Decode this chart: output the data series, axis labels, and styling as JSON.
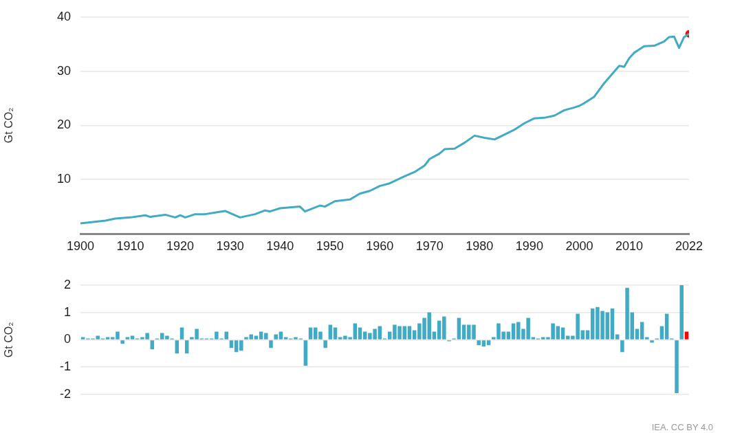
{
  "chart_data": [
    {
      "type": "line",
      "ylabel": "Gt CO₂",
      "xlim": [
        1900,
        2022
      ],
      "xticks": [
        1900,
        1910,
        1920,
        1930,
        1940,
        1950,
        1960,
        1970,
        1980,
        1990,
        2000,
        2010,
        2022
      ],
      "ylim": [
        0,
        40
      ],
      "yticks": [
        10,
        20,
        30,
        40
      ],
      "grid": "y",
      "legend": false,
      "series": [
        {
          "color": "#41aac4",
          "marker": "none",
          "x": [
            1900,
            1905,
            1907,
            1910,
            1913,
            1914,
            1917,
            1919,
            1920,
            1921,
            1923,
            1925,
            1927,
            1929,
            1932,
            1935,
            1937,
            1938,
            1940,
            1944,
            1945,
            1948,
            1949,
            1951,
            1954,
            1956,
            1958,
            1960,
            1962,
            1965,
            1967,
            1969,
            1970,
            1972,
            1973,
            1975,
            1977,
            1979,
            1981,
            1983,
            1985,
            1987,
            1989,
            1991,
            1993,
            1995,
            1997,
            1999,
            2000,
            2001,
            2003,
            2005,
            2008,
            2009,
            2010,
            2011,
            2013,
            2015,
            2017,
            2018,
            2019,
            2020,
            2021,
            2022
          ],
          "values": [
            1.9,
            2.4,
            2.8,
            3.0,
            3.4,
            3.1,
            3.5,
            3.0,
            3.4,
            3.0,
            3.6,
            3.6,
            3.9,
            4.2,
            3.0,
            3.6,
            4.3,
            4.1,
            4.7,
            5.0,
            4.1,
            5.2,
            5.0,
            6.0,
            6.3,
            7.4,
            7.9,
            8.8,
            9.3,
            10.6,
            11.4,
            12.6,
            13.8,
            14.8,
            15.6,
            15.7,
            16.8,
            18.1,
            17.7,
            17.4,
            18.3,
            19.2,
            20.4,
            21.3,
            21.4,
            21.8,
            22.8,
            23.3,
            23.6,
            24.1,
            25.3,
            27.8,
            31.0,
            30.8,
            32.4,
            33.4,
            34.6,
            34.7,
            35.5,
            36.3,
            36.4,
            34.3,
            36.3,
            36.9
          ]
        },
        {
          "type": "scatter",
          "color": "#ff0000",
          "marker": "circle",
          "x": [
            2022
          ],
          "values": [
            36.9
          ]
        }
      ]
    },
    {
      "type": "bar",
      "ylabel": "Gt CO₂",
      "ylim": [
        -2,
        2
      ],
      "yticks": [
        -2,
        -1,
        0,
        1,
        2
      ],
      "grid": "y",
      "legend": false,
      "tick_labels": "y",
      "categories": [
        null,
        null,
        null,
        null,
        null,
        null,
        null,
        null,
        null,
        null,
        null,
        null,
        null,
        null,
        null,
        null,
        null,
        null,
        null,
        null,
        null,
        null,
        null,
        null,
        null,
        null,
        null,
        null,
        null,
        null,
        null,
        null,
        null,
        null,
        null,
        null,
        null,
        null,
        null,
        null,
        null,
        null,
        null,
        null,
        null,
        null,
        null,
        null,
        null,
        null,
        null,
        null,
        null,
        null,
        null,
        null,
        null,
        null,
        null,
        null,
        null,
        null,
        null,
        null,
        null,
        null,
        null,
        null,
        null,
        null,
        null,
        null,
        null,
        null,
        null,
        null,
        null,
        null,
        null,
        null,
        null,
        null,
        null,
        null,
        null,
        null,
        null,
        null,
        null,
        null,
        null,
        null,
        null,
        null,
        null,
        null,
        null,
        null,
        null,
        null,
        null,
        null,
        null,
        null,
        null,
        null,
        null,
        null,
        null,
        null,
        null,
        null,
        null,
        null,
        null,
        null,
        null,
        null,
        null,
        null,
        null,
        null,
        null
      ],
      "values": [
        0.1,
        0.05,
        0.05,
        0.15,
        0.05,
        0.1,
        0.1,
        0.3,
        -0.15,
        0.1,
        0.15,
        0.05,
        0.1,
        0.25,
        -0.35,
        0.05,
        0.25,
        0.15,
        0.05,
        -0.5,
        0.45,
        -0.5,
        0.1,
        0.4,
        0.05,
        0.05,
        0.05,
        0.3,
        0.05,
        0.3,
        -0.3,
        -0.45,
        -0.4,
        0.1,
        0.2,
        0.15,
        0.3,
        0.25,
        -0.3,
        0.2,
        0.3,
        0.1,
        0.05,
        0.1,
        0.05,
        -0.95,
        0.45,
        0.45,
        0.3,
        -0.3,
        0.55,
        0.45,
        0.1,
        0.15,
        0.1,
        0.6,
        0.45,
        0.3,
        0.25,
        0.4,
        0.5,
        0.05,
        0.3,
        0.55,
        0.5,
        0.5,
        0.5,
        0.35,
        0.6,
        0.8,
        1.0,
        0.3,
        0.7,
        0.85,
        -0.05,
        0.05,
        0.8,
        0.55,
        0.55,
        0.55,
        -0.2,
        -0.25,
        -0.2,
        0.1,
        0.6,
        0.3,
        0.3,
        0.6,
        0.65,
        0.4,
        0.8,
        0.1,
        0.05,
        0.1,
        0.1,
        0.6,
        0.5,
        0.45,
        0.15,
        0.15,
        0.95,
        0.35,
        0.35,
        1.15,
        1.2,
        1.05,
        1.0,
        1.15,
        0.2,
        -0.45,
        1.9,
        1.0,
        0.4,
        0.65,
        0.1,
        -0.1,
        0.05,
        0.5,
        0.95,
        0.05,
        -1.95,
        2.0,
        0.3
      ],
      "colors": [
        "#41aac4",
        "#41aac4",
        "#41aac4",
        "#41aac4",
        "#41aac4",
        "#41aac4",
        "#41aac4",
        "#41aac4",
        "#41aac4",
        "#41aac4",
        "#41aac4",
        "#41aac4",
        "#41aac4",
        "#41aac4",
        "#41aac4",
        "#41aac4",
        "#41aac4",
        "#41aac4",
        "#41aac4",
        "#41aac4",
        "#41aac4",
        "#41aac4",
        "#41aac4",
        "#41aac4",
        "#41aac4",
        "#41aac4",
        "#41aac4",
        "#41aac4",
        "#41aac4",
        "#41aac4",
        "#41aac4",
        "#41aac4",
        "#41aac4",
        "#41aac4",
        "#41aac4",
        "#41aac4",
        "#41aac4",
        "#41aac4",
        "#41aac4",
        "#41aac4",
        "#41aac4",
        "#41aac4",
        "#41aac4",
        "#41aac4",
        "#41aac4",
        "#41aac4",
        "#41aac4",
        "#41aac4",
        "#41aac4",
        "#41aac4",
        "#41aac4",
        "#41aac4",
        "#41aac4",
        "#41aac4",
        "#41aac4",
        "#41aac4",
        "#41aac4",
        "#41aac4",
        "#41aac4",
        "#41aac4",
        "#41aac4",
        "#41aac4",
        "#41aac4",
        "#41aac4",
        "#41aac4",
        "#41aac4",
        "#41aac4",
        "#41aac4",
        "#41aac4",
        "#41aac4",
        "#41aac4",
        "#41aac4",
        "#41aac4",
        "#41aac4",
        "#41aac4",
        "#41aac4",
        "#41aac4",
        "#41aac4",
        "#41aac4",
        "#41aac4",
        "#41aac4",
        "#41aac4",
        "#41aac4",
        "#41aac4",
        "#41aac4",
        "#41aac4",
        "#41aac4",
        "#41aac4",
        "#41aac4",
        "#41aac4",
        "#41aac4",
        "#41aac4",
        "#41aac4",
        "#41aac4",
        "#41aac4",
        "#41aac4",
        "#41aac4",
        "#41aac4",
        "#41aac4",
        "#41aac4",
        "#41aac4",
        "#41aac4",
        "#41aac4",
        "#41aac4",
        "#41aac4",
        "#41aac4",
        "#41aac4",
        "#41aac4",
        "#41aac4",
        "#41aac4",
        "#41aac4",
        "#41aac4",
        "#41aac4",
        "#41aac4",
        "#41aac4",
        "#41aac4",
        "#41aac4",
        "#41aac4",
        "#41aac4",
        "#41aac4",
        "#41aac4",
        "#41aac4",
        "#ff0000"
      ],
      "annotations": [
        "IEA. CC BY 4.0"
      ]
    }
  ]
}
